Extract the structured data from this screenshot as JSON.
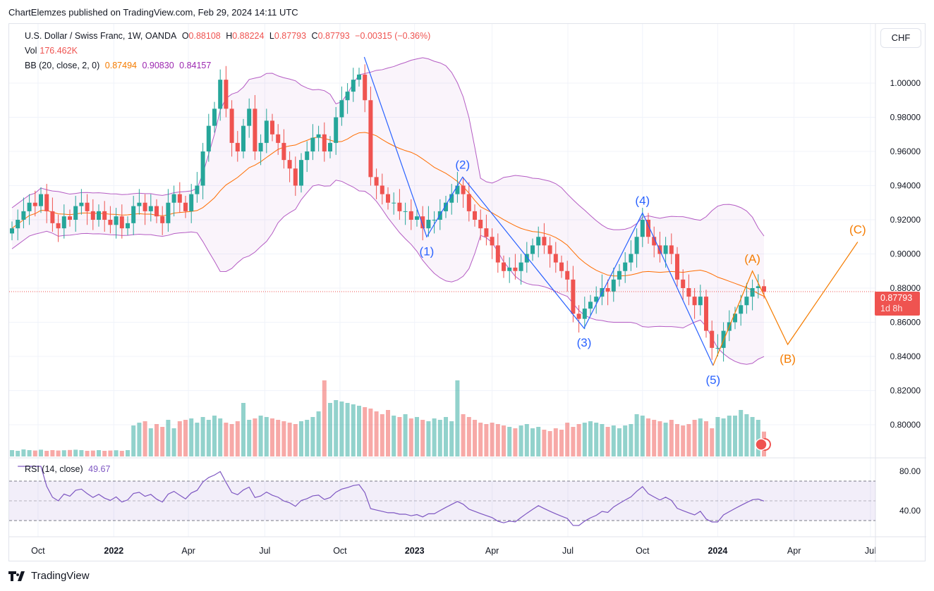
{
  "published": "ChartElemzes published on TradingView.com, Feb 29, 2024 14:11 UTC",
  "legend": {
    "symbol": "U.S. Dollar / Swiss Franc, 1W, OANDA",
    "o_label": "O",
    "o": "0.88108",
    "h_label": "H",
    "h": "0.88224",
    "l_label": "L",
    "l": "0.87793",
    "c_label": "C",
    "c": "0.87793",
    "change": "−0.00315 (−0.36%)",
    "vol_label": "Vol",
    "vol": "176.462K",
    "bb_label": "BB (20, close, 2, 0)",
    "bb_basis": "0.87494",
    "bb_upper": "0.90830",
    "bb_lower": "0.84157",
    "rsi_label": "RSI (14, close)",
    "rsi": "49.67"
  },
  "currency_button": "CHF",
  "last_price": {
    "value": "0.87793",
    "countdown": "1d 8h"
  },
  "logo": "TradingView",
  "colors": {
    "up": "#26a69a",
    "down": "#ef5350",
    "bb": "#9c27b0",
    "basis": "#ff6d00",
    "wave_impulse": "#2962ff",
    "wave_corrective": "#f57c00",
    "rsi": "#7e57c2"
  },
  "chart_data": {
    "type": "candlestick",
    "title": "U.S. Dollar / Swiss Franc, 1W, OANDA",
    "price_ticks": [
      "0.80000",
      "0.82000",
      "0.84000",
      "0.86000",
      "0.88000",
      "0.90000",
      "0.92000",
      "0.94000",
      "0.96000",
      "0.98000",
      "1.00000"
    ],
    "rsi_ticks": [
      "80.00",
      "40.00"
    ],
    "time_ticks": [
      {
        "label": "Oct",
        "week": 4.5,
        "bold": false
      },
      {
        "label": "2022",
        "week": 17.6,
        "bold": true
      },
      {
        "label": "Apr",
        "week": 30.5,
        "bold": false
      },
      {
        "label": "Jul",
        "week": 43.7,
        "bold": false
      },
      {
        "label": "Oct",
        "week": 56.7,
        "bold": false
      },
      {
        "label": "2023",
        "week": 69.6,
        "bold": true
      },
      {
        "label": "Apr",
        "week": 83,
        "bold": false
      },
      {
        "label": "Jul",
        "week": 96.1,
        "bold": false
      },
      {
        "label": "Oct",
        "week": 109,
        "bold": false
      },
      {
        "label": "2024",
        "week": 122,
        "bold": true
      },
      {
        "label": "Apr",
        "week": 135.2,
        "bold": false
      },
      {
        "label": "Jul",
        "week": 148.4,
        "bold": false
      }
    ],
    "close": [
      0.915,
      0.92,
      0.925,
      0.93,
      0.928,
      0.935,
      0.925,
      0.918,
      0.915,
      0.922,
      0.92,
      0.928,
      0.93,
      0.925,
      0.92,
      0.925,
      0.92,
      0.917,
      0.922,
      0.915,
      0.918,
      0.928,
      0.93,
      0.925,
      0.928,
      0.922,
      0.918,
      0.93,
      0.935,
      0.93,
      0.925,
      0.935,
      0.94,
      0.96,
      0.975,
      0.985,
      1.002,
      0.985,
      0.965,
      0.96,
      0.975,
      0.985,
      0.96,
      0.965,
      0.978,
      0.97,
      0.965,
      0.955,
      0.95,
      0.94,
      0.955,
      0.96,
      0.968,
      0.97,
      0.96,
      0.965,
      0.98,
      0.99,
      0.995,
      1.002,
      1.005,
      0.99,
      0.945,
      0.94,
      0.935,
      0.93,
      0.93,
      0.925,
      0.925,
      0.92,
      0.922,
      0.915,
      0.92,
      0.92,
      0.925,
      0.93,
      0.935,
      0.94,
      0.935,
      0.925,
      0.92,
      0.915,
      0.91,
      0.905,
      0.895,
      0.89,
      0.892,
      0.89,
      0.895,
      0.9,
      0.905,
      0.91,
      0.905,
      0.9,
      0.895,
      0.89,
      0.885,
      0.865,
      0.862,
      0.868,
      0.872,
      0.875,
      0.88,
      0.878,
      0.885,
      0.89,
      0.895,
      0.9,
      0.91,
      0.92,
      0.91,
      0.905,
      0.9,
      0.905,
      0.9,
      0.885,
      0.88,
      0.875,
      0.87,
      0.875,
      0.855,
      0.845,
      0.845,
      0.855,
      0.86,
      0.865,
      0.87,
      0.875,
      0.88,
      0.8811,
      0.87793
    ],
    "volume_k": [
      45,
      40,
      50,
      45,
      42,
      48,
      40,
      45,
      42,
      44,
      46,
      48,
      45,
      40,
      42,
      45,
      40,
      42,
      44,
      40,
      45,
      220,
      240,
      250,
      200,
      230,
      210,
      260,
      200,
      250,
      260,
      270,
      240,
      280,
      260,
      290,
      270,
      240,
      230,
      250,
      380,
      260,
      270,
      290,
      280,
      270,
      260,
      250,
      240,
      230,
      250,
      260,
      280,
      320,
      540,
      380,
      400,
      390,
      380,
      370,
      360,
      350,
      340,
      320,
      300,
      330,
      290,
      280,
      300,
      270,
      280,
      260,
      250,
      270,
      260,
      280,
      250,
      540,
      300,
      280,
      260,
      240,
      230,
      240,
      230,
      220,
      210,
      200,
      220,
      230,
      200,
      210,
      190,
      180,
      200,
      190,
      240,
      210,
      230,
      240,
      250,
      240,
      230,
      210,
      220,
      200,
      220,
      230,
      300,
      290,
      270,
      260,
      250,
      240,
      260,
      230,
      220,
      230,
      260,
      270,
      250,
      200,
      280,
      270,
      290,
      290,
      330,
      300,
      280,
      260,
      176.462
    ],
    "elliott_impulse": [
      {
        "label": "",
        "week": 60.9,
        "price": 1.0153
      },
      {
        "label": "(1)",
        "week": 71.7,
        "price": 0.91
      },
      {
        "label": "(2)",
        "week": 77.9,
        "price": 0.945
      },
      {
        "label": "(3)",
        "week": 98.9,
        "price": 0.8565
      },
      {
        "label": "(4)",
        "week": 109,
        "price": 0.924
      },
      {
        "label": "(5)",
        "week": 121.2,
        "price": 0.8347
      }
    ],
    "elliott_corrective": [
      {
        "label": "",
        "week": 121.2,
        "price": 0.8347
      },
      {
        "label": "(A)",
        "week": 128,
        "price": 0.89
      },
      {
        "label": "(B)",
        "week": 134.1,
        "price": 0.847
      },
      {
        "label": "(C)",
        "week": 146.2,
        "price": 0.907
      }
    ],
    "indicators": [
      "Bollinger Bands (20, close, 2, 0)",
      "Volume",
      "RSI (14, close)"
    ]
  }
}
